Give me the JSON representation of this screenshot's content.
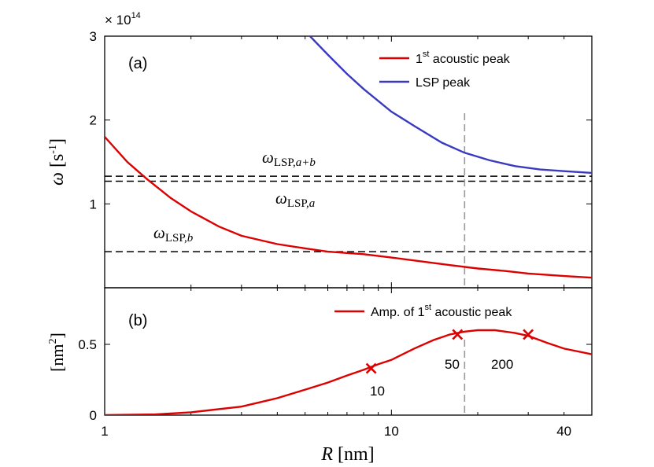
{
  "chart_data": [
    {
      "id": "a",
      "type": "line",
      "panel_label": "(a)",
      "multiplier_prefix": "× 10",
      "multiplier_exp": "14",
      "ylabel_symbol": "ω",
      "ylabel_unit_open": "[s",
      "ylabel_unit_exp": "-1",
      "ylabel_unit_close": "]",
      "xscale": "log",
      "xlim": [
        1,
        50
      ],
      "ylim": [
        0,
        3
      ],
      "yticks": [
        1,
        2,
        3
      ],
      "ytick_labels": [
        "1",
        "2",
        "3"
      ],
      "legend_position": "top-right",
      "series": [
        {
          "key": "acoustic",
          "legend_main": "1",
          "legend_sup": "st",
          "legend_rest": " acoustic peak",
          "color": "#dd0000",
          "x": [
            1,
            1.2,
            1.4,
            1.7,
            2,
            2.5,
            3,
            4,
            5,
            6,
            8,
            10,
            13,
            16,
            20,
            25,
            30,
            40,
            50
          ],
          "y": [
            1.8,
            1.5,
            1.3,
            1.07,
            0.91,
            0.73,
            0.62,
            0.52,
            0.47,
            0.43,
            0.4,
            0.36,
            0.31,
            0.27,
            0.23,
            0.2,
            0.17,
            0.14,
            0.12
          ]
        },
        {
          "key": "lsp",
          "legend_main": "LSP peak",
          "color": "#3a3ac0",
          "x": [
            5.2,
            6,
            7,
            8,
            10,
            12,
            15,
            18,
            22,
            27,
            33,
            40,
            50
          ],
          "y": [
            3.0,
            2.78,
            2.55,
            2.37,
            2.1,
            1.93,
            1.73,
            1.61,
            1.52,
            1.45,
            1.41,
            1.39,
            1.37
          ]
        }
      ],
      "hlines": [
        {
          "key": "a_plus_b",
          "y": 1.33,
          "label_main": "ω",
          "label_sub": "LSP,",
          "label_sub_italic": "a+b"
        },
        {
          "key": "a",
          "y": 1.27,
          "label_main": "ω",
          "label_sub": "LSP,",
          "label_sub_italic": "a"
        },
        {
          "key": "b",
          "y": 0.43,
          "label_main": "ω",
          "label_sub": "LSP,",
          "label_sub_italic": "b"
        }
      ],
      "vline_x": 18
    },
    {
      "id": "b",
      "type": "line",
      "panel_label": "(b)",
      "ylabel_open": "[nm",
      "ylabel_exp": "2",
      "ylabel_close": "]",
      "xlabel_var": "R",
      "xlabel_unit": "[nm]",
      "xscale": "log",
      "xlim": [
        1,
        50
      ],
      "ylim": [
        0,
        0.9
      ],
      "yticks": [
        0,
        0.5
      ],
      "ytick_labels": [
        "0",
        "0.5"
      ],
      "xticks": [
        1,
        10,
        40
      ],
      "xtick_labels": [
        "1",
        "10",
        "40"
      ],
      "legend_position": "top-right",
      "series": [
        {
          "key": "amp",
          "legend_main": "Amp. of 1",
          "legend_sup": "st",
          "legend_rest": " acoustic peak",
          "color": "#dd0000",
          "x": [
            1,
            1.5,
            2,
            3,
            4,
            5,
            6,
            7,
            8,
            9,
            10,
            12,
            14,
            16,
            18,
            20,
            23,
            27,
            30,
            35,
            40,
            50
          ],
          "y": [
            0,
            0.005,
            0.02,
            0.06,
            0.12,
            0.18,
            0.23,
            0.28,
            0.32,
            0.36,
            0.39,
            0.47,
            0.53,
            0.57,
            0.59,
            0.6,
            0.6,
            0.58,
            0.56,
            0.51,
            0.47,
            0.43
          ]
        }
      ],
      "markers": [
        {
          "x": 8.5,
          "y": 0.33,
          "label": "10"
        },
        {
          "x": 17,
          "y": 0.57,
          "label": "50"
        },
        {
          "x": 30,
          "y": 0.57,
          "label": "200"
        }
      ],
      "vline_x": 18
    }
  ]
}
